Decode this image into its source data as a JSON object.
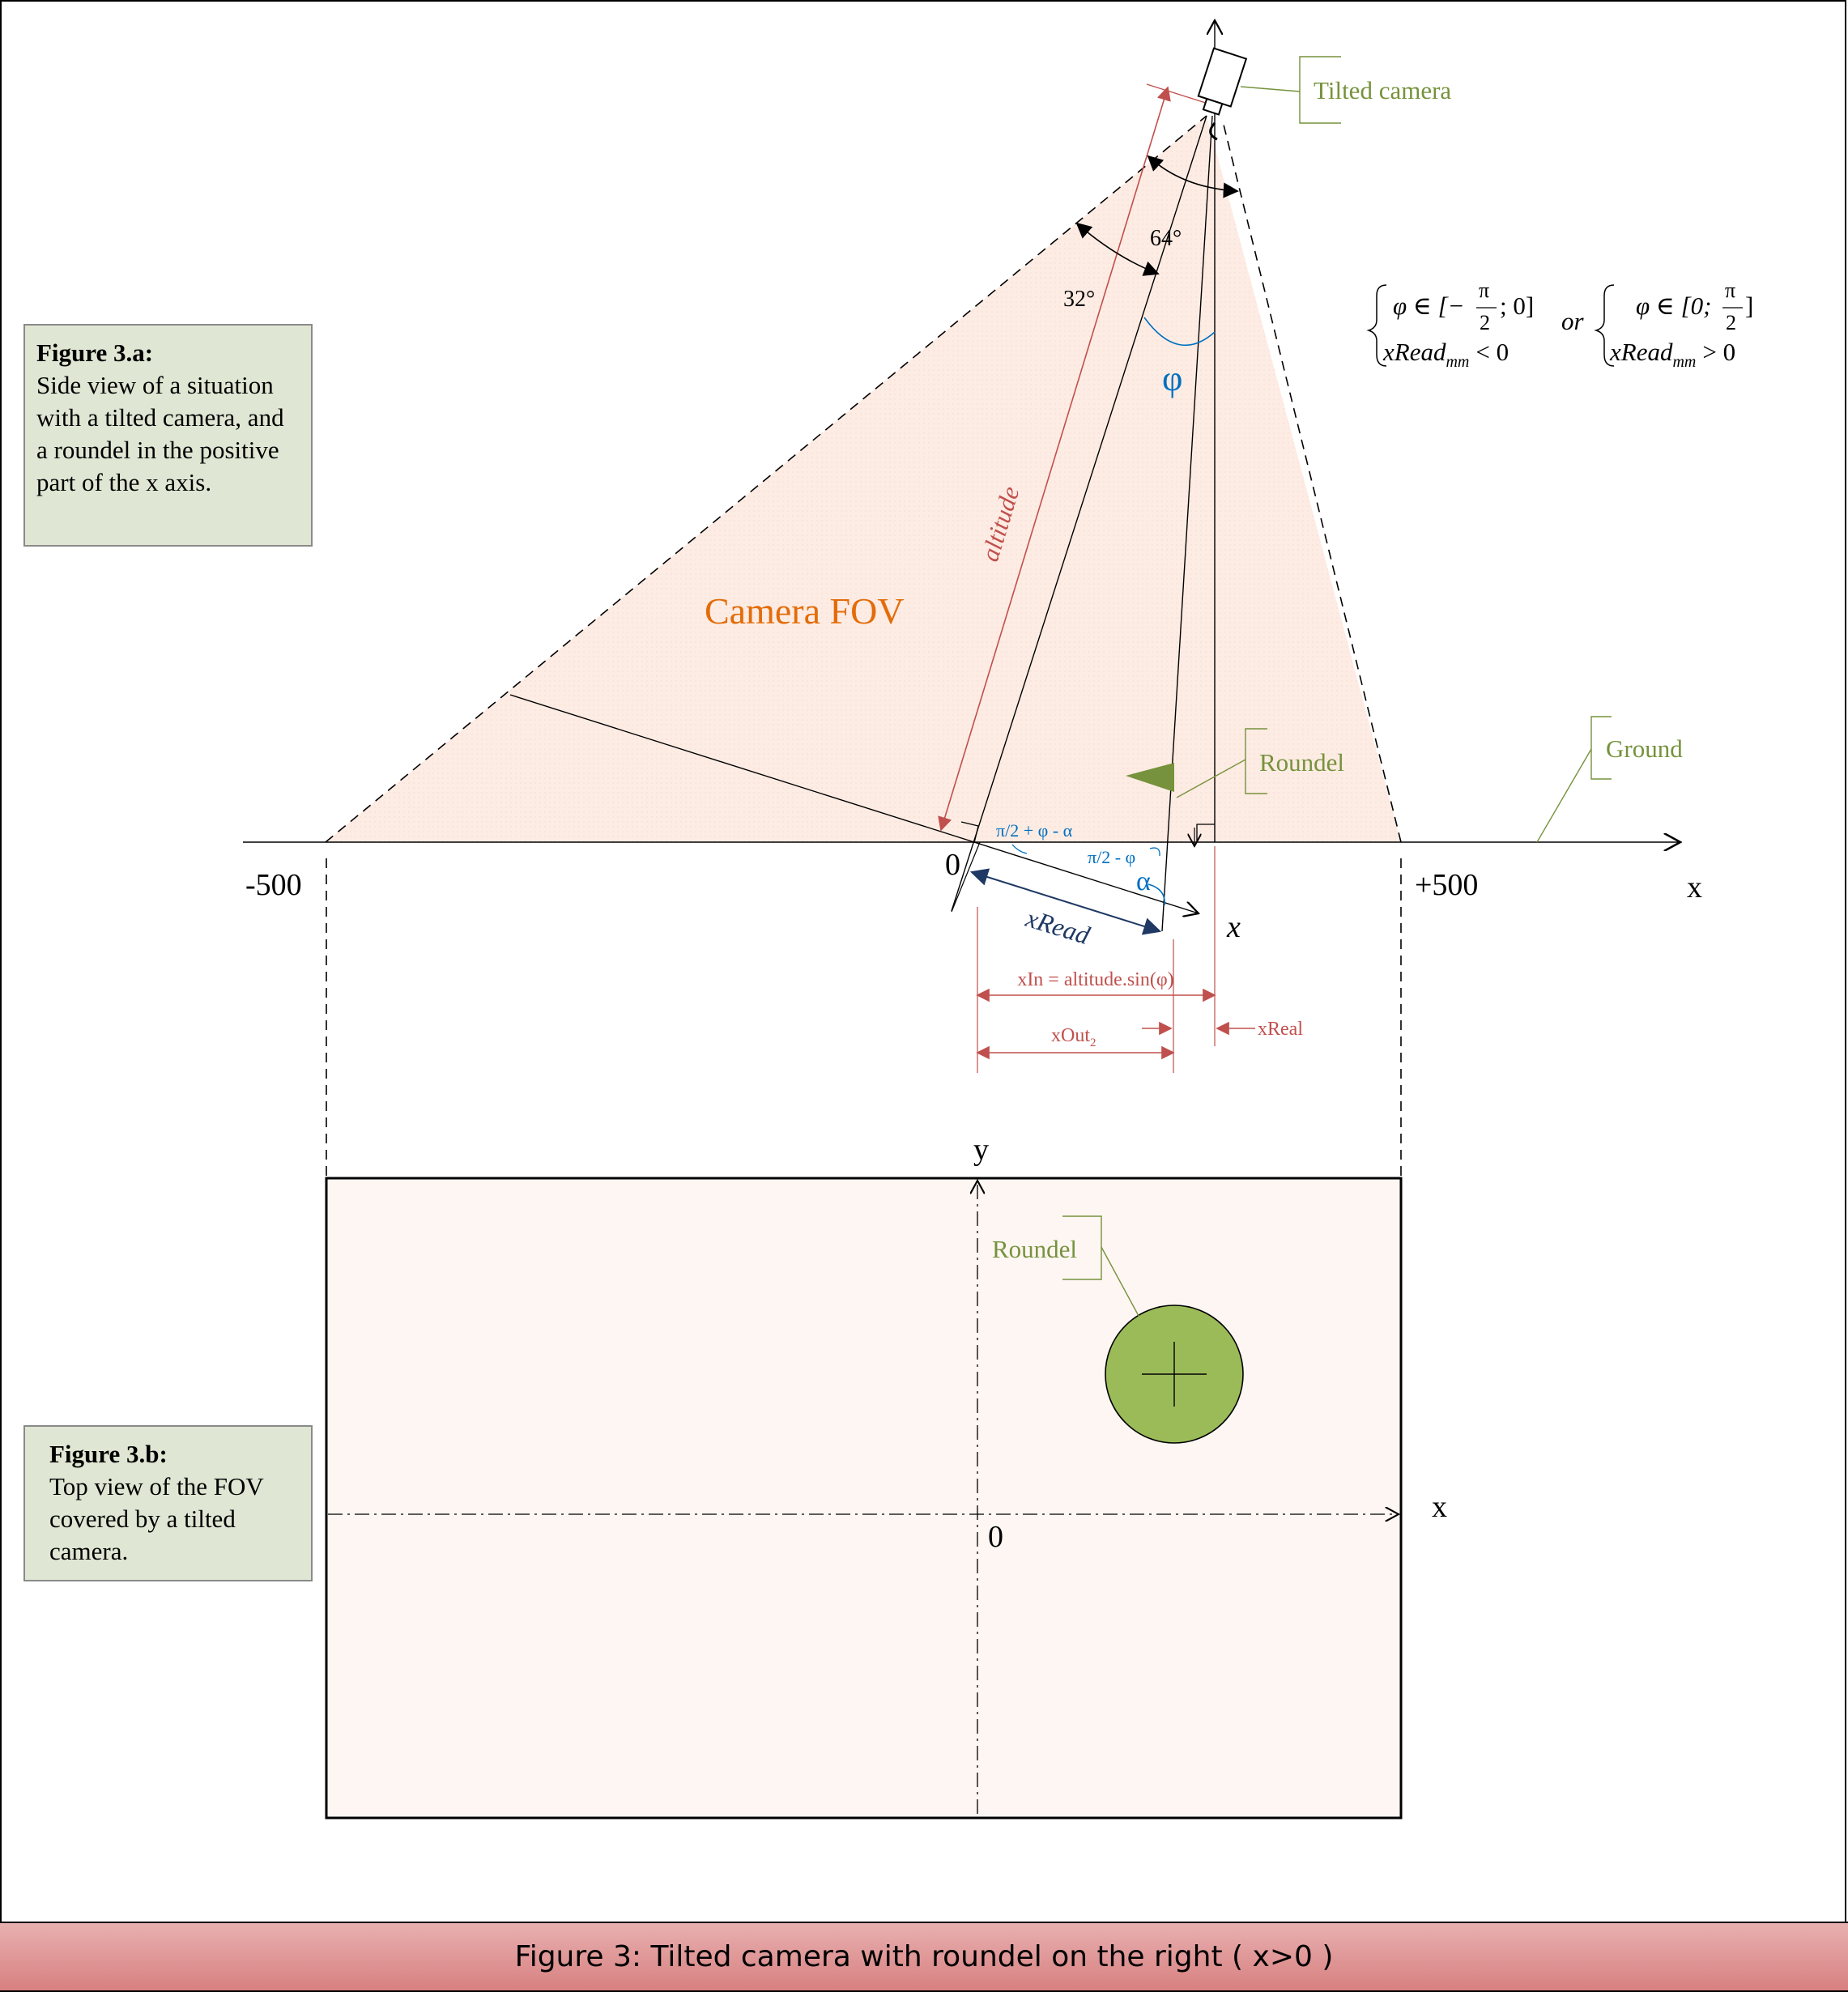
{
  "caption_a": {
    "title": "Figure 3.a:",
    "body": "Side view of a situation with a tilted camera, and a roundel in the positive part of the x axis."
  },
  "caption_b": {
    "title": "Figure 3.b:",
    "body": "Top view of the FOV covered by a tilted camera."
  },
  "labels": {
    "tilted_camera": "Tilted camera",
    "roundel_side": "Roundel",
    "ground": "Ground",
    "camera_fov": "Camera FOV",
    "altitude": "altitude",
    "angle_64": "64°",
    "angle_32": "32°",
    "phi": "φ",
    "alpha": "α",
    "pi2_phi_alpha": "π/2 + φ - α",
    "pi2_phi": "π/2 - φ",
    "x_read": "xRead",
    "x_in": "xIn = altitude.sin(φ)",
    "x_out2": "xOut",
    "x_out2_sub": "2",
    "x_real": "xReal",
    "x_italic": "x",
    "x_axis": "x",
    "minus_500": "-500",
    "plus_500": "+500",
    "origin_side": "0",
    "y_axis_top": "y",
    "x_axis_top": "x",
    "origin_top": "0",
    "roundel_top": "Roundel"
  },
  "formula": {
    "left_line1": "φ ∈ [−",
    "left_frac_num": "π",
    "left_frac_den": "2",
    "left_line1_end": "; 0]",
    "left_line2": "xRead",
    "left_line2_sub": "mm",
    "left_line2_end": "< 0",
    "or": "or",
    "right_line1": "φ ∈ [0;",
    "right_frac_num": "π",
    "right_frac_den": "2",
    "right_line1_end": "]",
    "right_line2": "xRead",
    "right_line2_sub": "mm",
    "right_line2_end": "> 0"
  },
  "footer": "Figure 3: Tilted camera with roundel on the right ( x>0 )",
  "colors": {
    "fov_fill": "#fdece4",
    "label_green": "#76923c",
    "roundel_green": "#9bbb59",
    "fov_orange": "#e36c09",
    "dim_red": "#c0504d",
    "angle_blue": "#0070c0",
    "navy": "#1f3864"
  }
}
